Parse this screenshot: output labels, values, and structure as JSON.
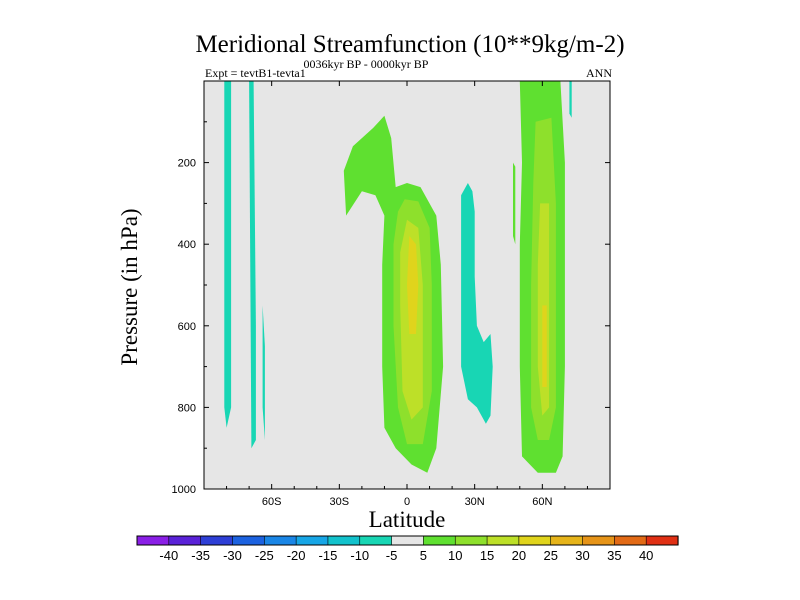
{
  "chart_data": {
    "type": "contour",
    "title": "Meridional Streamfunction (10**9kg/m-2)",
    "subtitle": "0036kyr BP - 0000kyr BP",
    "left_label": "Expt = tevtB1-tevta1",
    "right_label": "ANN",
    "xlabel": "Latitude",
    "ylabel": "Pressure (in hPa)",
    "xlim": [
      -90,
      90
    ],
    "ylim": [
      1000,
      0
    ],
    "x_ticks": [
      {
        "value": -60,
        "label": "60S"
      },
      {
        "value": -30,
        "label": "30S"
      },
      {
        "value": 0,
        "label": "0"
      },
      {
        "value": 30,
        "label": "30N"
      },
      {
        "value": 60,
        "label": "60N"
      }
    ],
    "y_ticks": [
      {
        "value": 200,
        "label": "200"
      },
      {
        "value": 400,
        "label": "400"
      },
      {
        "value": 600,
        "label": "600"
      },
      {
        "value": 800,
        "label": "800"
      },
      {
        "value": 1000,
        "label": "1000"
      }
    ],
    "colorbar": {
      "levels": [
        "-40",
        "-35",
        "-30",
        "-25",
        "-20",
        "-15",
        "-10",
        "-5",
        "5",
        "10",
        "15",
        "20",
        "25",
        "30",
        "35",
        "40"
      ],
      "colors": [
        "#8a1fe6",
        "#5a22d8",
        "#2e3fd6",
        "#1c62e0",
        "#1a86e6",
        "#17a6e6",
        "#12c2cc",
        "#18d6b4",
        "#e6e6e6",
        "#5fe030",
        "#8ee02c",
        "#bde028",
        "#e0d41c",
        "#e6b41a",
        "#e69418",
        "#e26a16",
        "#e03014"
      ]
    },
    "regions": [
      {
        "name": "south-polar-negative-band",
        "value": -7,
        "points": [
          [
            -81,
            0
          ],
          [
            -78,
            0
          ],
          [
            -78,
            800
          ],
          [
            -80,
            850
          ],
          [
            -81,
            800
          ]
        ]
      },
      {
        "name": "south-60s-negative-band",
        "value": -7,
        "points": [
          [
            -70,
            0
          ],
          [
            -68,
            0
          ],
          [
            -67,
            600
          ],
          [
            -67,
            880
          ],
          [
            -69,
            900
          ]
        ]
      },
      {
        "name": "south-62s-negative-sliver",
        "value": -7,
        "points": [
          [
            -64,
            550
          ],
          [
            -63,
            650
          ],
          [
            -63,
            880
          ],
          [
            -64,
            800
          ]
        ]
      },
      {
        "name": "southern-hadley-outer",
        "value": 7,
        "points": [
          [
            -27,
            330
          ],
          [
            -28,
            220
          ],
          [
            -24,
            160
          ],
          [
            -15,
            115
          ],
          [
            -10,
            85
          ],
          [
            -7,
            140
          ],
          [
            -5,
            260
          ],
          [
            0,
            250
          ],
          [
            6,
            260
          ],
          [
            13,
            330
          ],
          [
            15,
            450
          ],
          [
            16,
            700
          ],
          [
            13,
            900
          ],
          [
            9,
            960
          ],
          [
            2,
            940
          ],
          [
            -5,
            900
          ],
          [
            -10,
            850
          ],
          [
            -11,
            700
          ],
          [
            -11,
            450
          ],
          [
            -10,
            330
          ],
          [
            -14,
            280
          ],
          [
            -20,
            270
          ]
        ]
      },
      {
        "name": "southern-hadley-10",
        "value": 12,
        "points": [
          [
            -1,
            290
          ],
          [
            5,
            295
          ],
          [
            10,
            360
          ],
          [
            11,
            500
          ],
          [
            11,
            760
          ],
          [
            7,
            890
          ],
          [
            0,
            890
          ],
          [
            -4,
            800
          ],
          [
            -6,
            600
          ],
          [
            -6,
            400
          ],
          [
            -4,
            320
          ]
        ]
      },
      {
        "name": "southern-hadley-15",
        "value": 17,
        "points": [
          [
            0,
            340
          ],
          [
            5,
            360
          ],
          [
            7,
            500
          ],
          [
            7,
            800
          ],
          [
            2,
            830
          ],
          [
            -2,
            760
          ],
          [
            -3,
            550
          ],
          [
            -3,
            420
          ]
        ]
      },
      {
        "name": "southern-hadley-core",
        "value": 22,
        "points": [
          [
            1,
            380
          ],
          [
            4,
            400
          ],
          [
            5,
            500
          ],
          [
            4,
            620
          ],
          [
            1,
            620
          ],
          [
            0,
            500
          ]
        ]
      },
      {
        "name": "tropical-negative-cell",
        "value": -7,
        "points": [
          [
            24,
            280
          ],
          [
            27,
            250
          ],
          [
            29,
            270
          ],
          [
            30,
            320
          ],
          [
            30,
            480
          ],
          [
            31,
            600
          ],
          [
            34,
            640
          ],
          [
            37,
            620
          ],
          [
            38,
            700
          ],
          [
            37,
            820
          ],
          [
            35,
            840
          ],
          [
            31,
            800
          ],
          [
            27,
            780
          ],
          [
            24,
            700
          ],
          [
            24,
            500
          ]
        ]
      },
      {
        "name": "northern-ferrel-outer",
        "value": 7,
        "points": [
          [
            50,
            0
          ],
          [
            68,
            0
          ],
          [
            70,
            200
          ],
          [
            70,
            700
          ],
          [
            69,
            920
          ],
          [
            66,
            960
          ],
          [
            58,
            960
          ],
          [
            51,
            920
          ],
          [
            50,
            700
          ],
          [
            50,
            400
          ],
          [
            51,
            200
          ]
        ]
      },
      {
        "name": "northern-ferrel-10",
        "value": 12,
        "points": [
          [
            57,
            100
          ],
          [
            64,
            90
          ],
          [
            66,
            300
          ],
          [
            66,
            800
          ],
          [
            63,
            880
          ],
          [
            58,
            880
          ],
          [
            55,
            800
          ],
          [
            55,
            500
          ],
          [
            56,
            250
          ]
        ]
      },
      {
        "name": "northern-ferrel-15",
        "value": 17,
        "points": [
          [
            59,
            300
          ],
          [
            63,
            300
          ],
          [
            63,
            800
          ],
          [
            60,
            820
          ],
          [
            58,
            700
          ],
          [
            58,
            450
          ]
        ]
      },
      {
        "name": "northern-ferrel-core",
        "value": 22,
        "points": [
          [
            60,
            550
          ],
          [
            62,
            550
          ],
          [
            62,
            750
          ],
          [
            60,
            750
          ]
        ]
      },
      {
        "name": "north-70n-negative-sliver",
        "value": -7,
        "points": [
          [
            72,
            0
          ],
          [
            73,
            0
          ],
          [
            73,
            90
          ],
          [
            72,
            80
          ]
        ]
      },
      {
        "name": "north-48n-positive-sliver",
        "value": 7,
        "points": [
          [
            47,
            200
          ],
          [
            48,
            210
          ],
          [
            48,
            400
          ],
          [
            47,
            380
          ]
        ]
      }
    ]
  }
}
